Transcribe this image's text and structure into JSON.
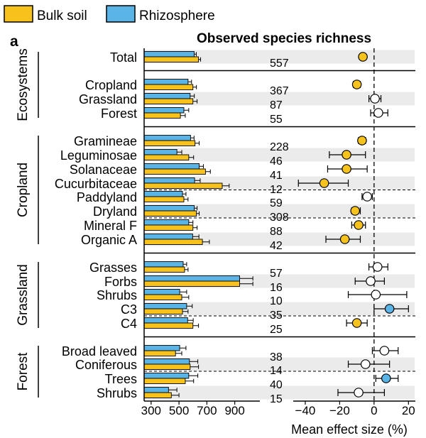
{
  "legend": [
    {
      "label": "Bulk soil",
      "color": "#F6C21B"
    },
    {
      "label": "Rhizosphere",
      "color": "#5AB4E5"
    }
  ],
  "panel_label": "a",
  "colors": {
    "bulk": "#F6C21B",
    "rhizo": "#5AB4E5",
    "open": "#ffffff",
    "shade": "#EBEBEB"
  },
  "chart_data": [
    {
      "type": "bar",
      "title": "",
      "orientation": "horizontal",
      "xlabel": "",
      "xlim": [
        250,
        1080
      ],
      "xticks": [
        300,
        500,
        700,
        900
      ],
      "categories": [
        "Total",
        "Cropland",
        "Grassland",
        "Forest",
        "Gramineae",
        "Leguminosae",
        "Solanaceae",
        "Cucurbitaceae",
        "Paddyland",
        "Dryland",
        "Mineral F",
        "Organic A",
        "Grasses",
        "Forbs",
        "Shrubs",
        "C3",
        "C4",
        "Broad leaved",
        "Coniferous",
        "Trees",
        "Shrubs"
      ],
      "series": [
        {
          "name": "Rhizosphere",
          "values": [
            609,
            565,
            580,
            535,
            583,
            485,
            645,
            612,
            525,
            610,
            570,
            598,
            530,
            935,
            505,
            555,
            562,
            505,
            575,
            570,
            425
          ],
          "errors": [
            15,
            25,
            30,
            35,
            25,
            35,
            30,
            40,
            25,
            20,
            30,
            45,
            25,
            95,
            50,
            40,
            40,
            45,
            60,
            65,
            60
          ]
        },
        {
          "name": "Bulk soil",
          "values": [
            640,
            600,
            600,
            510,
            615,
            570,
            690,
            810,
            535,
            625,
            600,
            668,
            540,
            935,
            520,
            525,
            600,
            475,
            580,
            545,
            445
          ],
          "errors": [
            15,
            25,
            30,
            35,
            30,
            35,
            35,
            50,
            30,
            20,
            30,
            50,
            25,
            95,
            50,
            40,
            40,
            45,
            60,
            60,
            55
          ]
        }
      ]
    },
    {
      "type": "table",
      "column": "n",
      "values": [
        "557",
        "367",
        "87",
        "55",
        "228",
        "46",
        "41",
        "12",
        "59",
        "308",
        "88",
        "42",
        "57",
        "16",
        "10",
        "35",
        "25",
        "38",
        "14",
        "40",
        "15"
      ]
    },
    {
      "type": "scatter",
      "title": "Observed species richness",
      "xlabel": "Mean effect size (%)",
      "xlim": [
        -47,
        24
      ],
      "xticks": [
        -40,
        -20,
        0,
        20
      ],
      "xtick_labels": [
        "−40",
        "−20",
        "0",
        "20"
      ],
      "reference_line": 0,
      "categories": [
        "Total",
        "Cropland",
        "Grassland",
        "Forest",
        "Gramineae",
        "Leguminosae",
        "Solanaceae",
        "Cucurbitaceae",
        "Paddyland",
        "Dryland",
        "Mineral F",
        "Organic A",
        "Grasses",
        "Forbs",
        "Shrubs",
        "C3",
        "C4",
        "Broad leaved",
        "Coniferous",
        "Trees",
        "Shrubs"
      ],
      "values": [
        -6.5,
        -10,
        0.5,
        2.5,
        -7,
        -16,
        -16,
        -29,
        -4,
        -11,
        -9,
        -17,
        2,
        -2,
        1,
        9,
        -10,
        6,
        -5,
        7,
        -9
      ],
      "ci_low": [
        -8,
        -12,
        -3,
        -2,
        -9,
        -26,
        -27,
        -44,
        -7,
        -13,
        -13,
        -28,
        -3,
        -11,
        -15,
        0,
        -16,
        -1,
        -15,
        1,
        -21
      ],
      "ci_high": [
        -5,
        -8,
        4,
        8,
        -5,
        -5,
        -4,
        -15,
        -1,
        -8,
        -5,
        -8,
        8,
        6,
        19,
        20,
        -4,
        14,
        9,
        14,
        6
      ],
      "marker": [
        "bulk",
        "bulk",
        "open",
        "open",
        "bulk",
        "bulk",
        "bulk",
        "bulk",
        "open",
        "bulk",
        "bulk",
        "bulk",
        "open",
        "open",
        "open",
        "rhizo",
        "bulk",
        "open",
        "open",
        "rhizo",
        "open"
      ]
    }
  ],
  "groups": [
    {
      "label": "Ecosystems",
      "first": 0,
      "last": 3
    },
    {
      "label": "Cropland",
      "first": 4,
      "last": 11
    },
    {
      "label": "Grassland",
      "first": 12,
      "last": 16
    },
    {
      "label": "Forest",
      "first": 17,
      "last": 20
    }
  ]
}
